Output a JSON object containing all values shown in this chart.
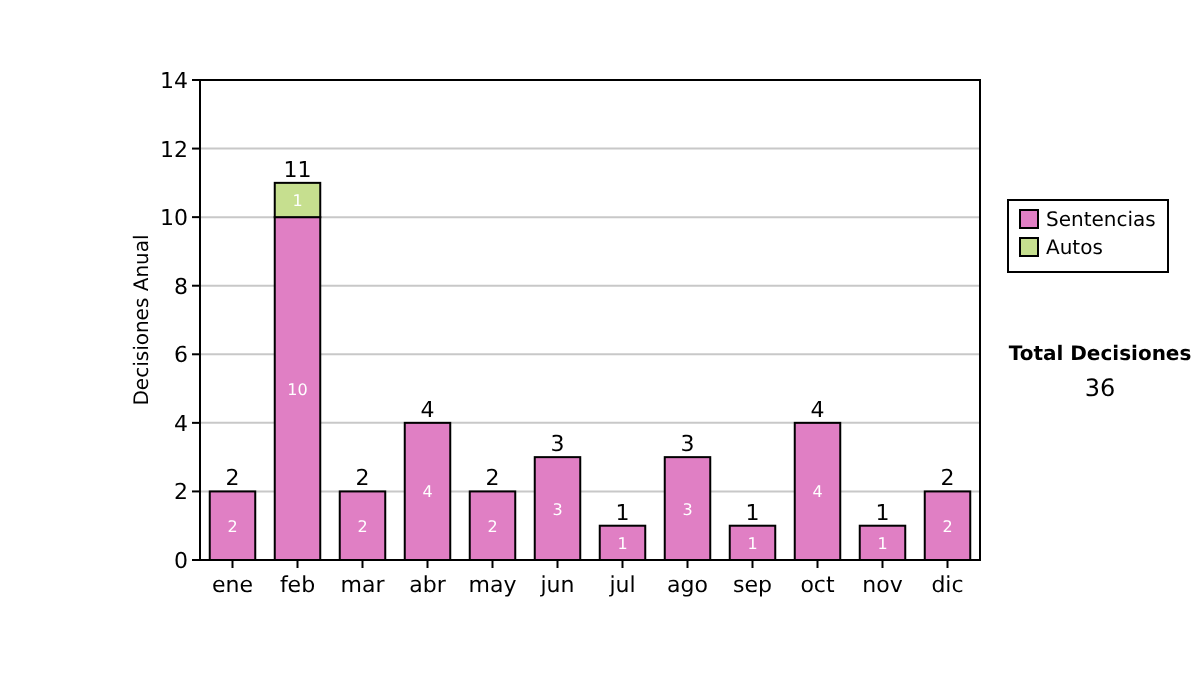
{
  "chart_data": {
    "type": "bar",
    "stacked": true,
    "ylabel": "Decisiones Anual",
    "categories": [
      "ene",
      "feb",
      "mar",
      "abr",
      "may",
      "jun",
      "jul",
      "ago",
      "sep",
      "oct",
      "nov",
      "dic"
    ],
    "series": [
      {
        "name": "Sentencias",
        "color": "#e07fc4",
        "values": [
          2,
          10,
          2,
          4,
          2,
          3,
          1,
          3,
          1,
          4,
          1,
          2
        ]
      },
      {
        "name": "Autos",
        "color": "#c6df8f",
        "values": [
          null,
          1,
          null,
          null,
          null,
          null,
          null,
          null,
          null,
          null,
          null,
          null
        ]
      }
    ],
    "totals": [
      "2",
      "11",
      "2",
      "4",
      "2",
      "3",
      "1",
      "3",
      "1",
      "4",
      "1",
      "2"
    ],
    "data_labels": true,
    "ylim": [
      0,
      14
    ],
    "yticks": [
      0,
      2,
      4,
      6,
      8,
      10,
      12,
      14
    ],
    "grid": "y",
    "legend": "right",
    "annotations": [
      "Total Decisiones",
      "36"
    ]
  }
}
